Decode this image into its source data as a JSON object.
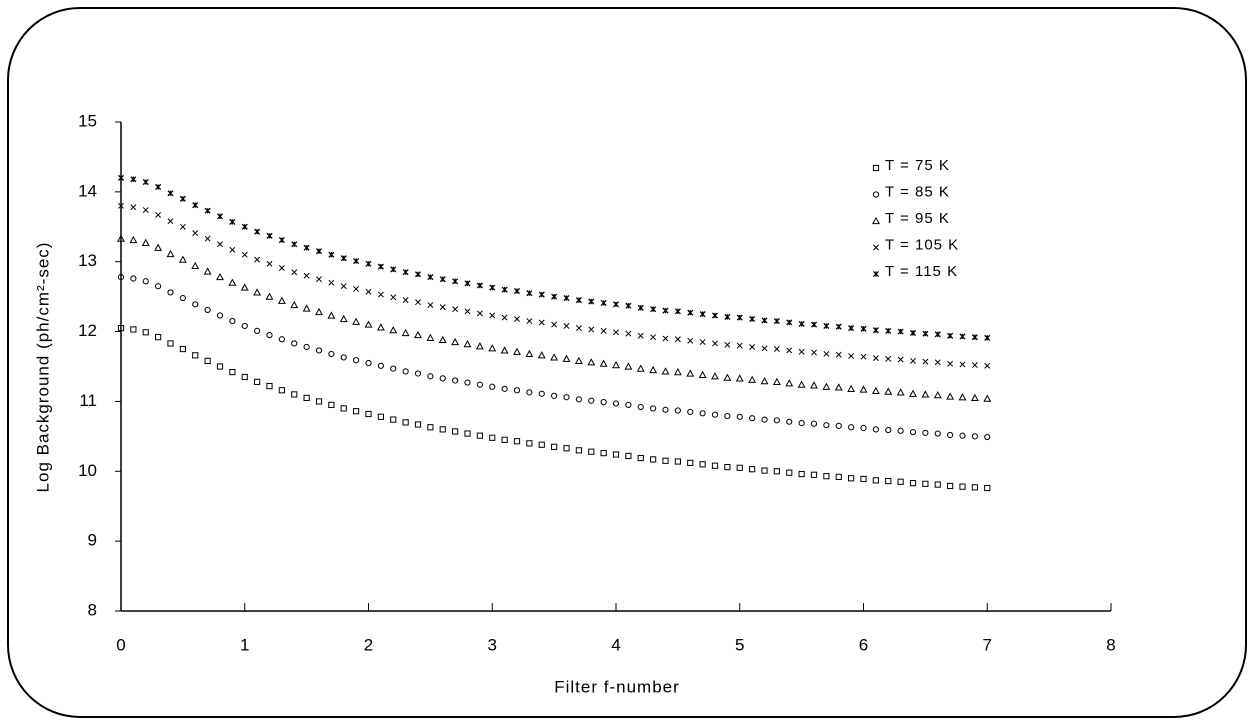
{
  "chart_data": {
    "type": "scatter",
    "x_label": "Filter f-number",
    "y_label": "Log Background (ph/cm²-sec)",
    "xlim": [
      0,
      8
    ],
    "xticks": [
      0,
      1,
      2,
      3,
      4,
      5,
      6,
      7,
      8
    ],
    "ylim": [
      8,
      15
    ],
    "yticks": [
      8,
      9,
      10,
      11,
      12,
      13,
      14,
      15
    ],
    "legend": "upper right",
    "x": [
      0,
      0.1,
      0.2,
      0.3,
      0.4,
      0.5,
      0.6,
      0.7,
      0.8,
      0.9,
      1,
      1.1,
      1.2,
      1.3,
      1.4,
      1.5,
      1.6,
      1.7,
      1.8,
      1.9,
      2,
      2.1,
      2.2,
      2.3,
      2.4,
      2.5,
      2.6,
      2.7,
      2.8,
      2.9,
      3,
      3.1,
      3.2,
      3.3,
      3.4,
      3.5,
      3.6,
      3.7,
      3.8,
      3.9,
      4,
      4.1,
      4.2,
      4.3,
      4.4,
      4.5,
      4.6,
      4.7,
      4.8,
      4.9,
      5,
      5.1,
      5.2,
      5.3,
      5.4,
      5.5,
      5.6,
      5.7,
      5.8,
      5.9,
      6,
      6.1,
      6.2,
      6.3,
      6.4,
      6.5,
      6.6,
      6.7,
      6.8,
      6.9,
      7
    ],
    "series": [
      {
        "name": "T = 75 K",
        "color": "#000000",
        "marker": "square",
        "values": [
          12.05,
          12.03,
          11.99,
          11.92,
          11.83,
          11.75,
          11.66,
          11.58,
          11.5,
          11.42,
          11.35,
          11.28,
          11.22,
          11.16,
          11.1,
          11.05,
          11.0,
          10.95,
          10.9,
          10.86,
          10.82,
          10.78,
          10.74,
          10.7,
          10.67,
          10.63,
          10.6,
          10.57,
          10.54,
          10.51,
          10.48,
          10.45,
          10.43,
          10.4,
          10.38,
          10.35,
          10.33,
          10.3,
          10.28,
          10.26,
          10.24,
          10.22,
          10.19,
          10.17,
          10.15,
          10.14,
          10.12,
          10.1,
          10.08,
          10.06,
          10.05,
          10.03,
          10.01,
          10.0,
          9.98,
          9.96,
          9.95,
          9.93,
          9.92,
          9.9,
          9.89,
          9.87,
          9.86,
          9.85,
          9.83,
          9.82,
          9.81,
          9.79,
          9.78,
          9.77,
          9.76
        ]
      },
      {
        "name": "T = 85 K",
        "color": "#000000",
        "marker": "circle",
        "values": [
          12.78,
          12.76,
          12.72,
          12.65,
          12.56,
          12.48,
          12.39,
          12.31,
          12.23,
          12.15,
          12.08,
          12.01,
          11.95,
          11.89,
          11.83,
          11.78,
          11.73,
          11.68,
          11.63,
          11.59,
          11.55,
          11.51,
          11.47,
          11.43,
          11.4,
          11.36,
          11.33,
          11.3,
          11.27,
          11.24,
          11.21,
          11.18,
          11.16,
          11.13,
          11.11,
          11.08,
          11.06,
          11.03,
          11.01,
          10.99,
          10.97,
          10.95,
          10.92,
          10.9,
          10.88,
          10.87,
          10.85,
          10.83,
          10.81,
          10.79,
          10.78,
          10.76,
          10.74,
          10.73,
          10.71,
          10.69,
          10.68,
          10.66,
          10.65,
          10.63,
          10.62,
          10.6,
          10.59,
          10.58,
          10.56,
          10.55,
          10.54,
          10.52,
          10.51,
          10.5,
          10.49
        ]
      },
      {
        "name": "T = 95 K",
        "color": "#000000",
        "marker": "triangle",
        "values": [
          13.33,
          13.31,
          13.27,
          13.2,
          13.11,
          13.03,
          12.94,
          12.86,
          12.78,
          12.7,
          12.63,
          12.56,
          12.5,
          12.44,
          12.38,
          12.33,
          12.28,
          12.23,
          12.18,
          12.14,
          12.1,
          12.06,
          12.02,
          11.98,
          11.95,
          11.91,
          11.88,
          11.85,
          11.82,
          11.79,
          11.76,
          11.73,
          11.71,
          11.68,
          11.66,
          11.63,
          11.61,
          11.58,
          11.56,
          11.54,
          11.52,
          11.5,
          11.47,
          11.45,
          11.43,
          11.42,
          11.4,
          11.38,
          11.36,
          11.34,
          11.33,
          11.31,
          11.29,
          11.28,
          11.26,
          11.24,
          11.23,
          11.21,
          11.2,
          11.18,
          11.17,
          11.15,
          11.14,
          11.13,
          11.11,
          11.1,
          11.09,
          11.07,
          11.06,
          11.05,
          11.04
        ]
      },
      {
        "name": "T = 105 K",
        "color": "#000000",
        "marker": "cross",
        "values": [
          13.8,
          13.78,
          13.74,
          13.67,
          13.58,
          13.5,
          13.41,
          13.33,
          13.25,
          13.17,
          13.1,
          13.03,
          12.97,
          12.91,
          12.85,
          12.8,
          12.75,
          12.7,
          12.65,
          12.61,
          12.57,
          12.53,
          12.49,
          12.45,
          12.42,
          12.38,
          12.35,
          12.32,
          12.29,
          12.26,
          12.23,
          12.2,
          12.18,
          12.15,
          12.13,
          12.1,
          12.08,
          12.05,
          12.03,
          12.01,
          11.99,
          11.97,
          11.94,
          11.92,
          11.9,
          11.89,
          11.87,
          11.85,
          11.83,
          11.81,
          11.8,
          11.78,
          11.76,
          11.75,
          11.73,
          11.71,
          11.7,
          11.68,
          11.67,
          11.65,
          11.64,
          11.62,
          11.61,
          11.6,
          11.58,
          11.57,
          11.56,
          11.54,
          11.53,
          11.52,
          11.51
        ]
      },
      {
        "name": "T = 115 K",
        "color": "#000000",
        "marker": "star",
        "values": [
          14.2,
          14.18,
          14.14,
          14.07,
          13.98,
          13.9,
          13.81,
          13.73,
          13.65,
          13.57,
          13.5,
          13.43,
          13.37,
          13.31,
          13.25,
          13.2,
          13.15,
          13.1,
          13.05,
          13.01,
          12.97,
          12.93,
          12.89,
          12.85,
          12.82,
          12.78,
          12.75,
          12.72,
          12.69,
          12.66,
          12.63,
          12.6,
          12.58,
          12.55,
          12.53,
          12.5,
          12.48,
          12.45,
          12.43,
          12.41,
          12.39,
          12.37,
          12.34,
          12.32,
          12.3,
          12.29,
          12.27,
          12.25,
          12.23,
          12.21,
          12.2,
          12.18,
          12.16,
          12.15,
          12.13,
          12.11,
          12.1,
          12.08,
          12.07,
          12.05,
          12.04,
          12.02,
          12.01,
          12.0,
          11.98,
          11.97,
          11.96,
          11.94,
          11.93,
          11.92,
          11.91
        ]
      }
    ]
  }
}
